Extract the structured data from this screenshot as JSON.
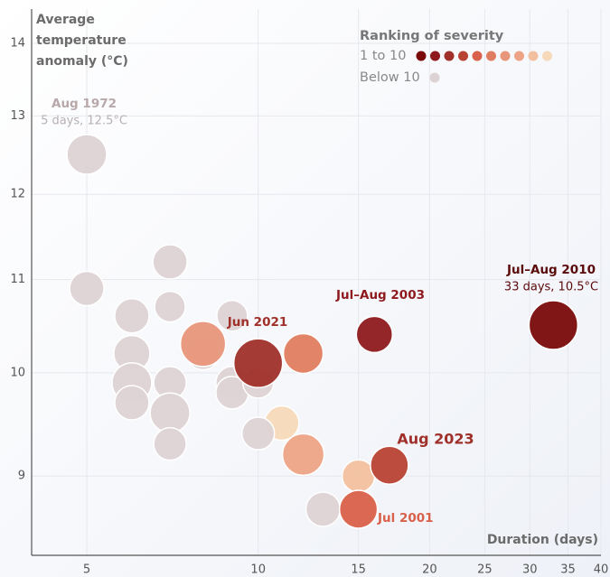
{
  "chart_data": {
    "type": "scatter",
    "y_label": [
      "Average",
      "temperature",
      "anomaly (°C)"
    ],
    "x_label": "Duration (days)",
    "x_scale": "log",
    "y_scale": "log",
    "grid": true,
    "xlim": [
      4,
      40
    ],
    "ylim": [
      8.3,
      14.5
    ],
    "xticks": [
      5,
      10,
      15,
      20,
      25,
      30,
      35,
      40
    ],
    "yticks": [
      9,
      10,
      11,
      12,
      13,
      14
    ],
    "series": [
      {
        "x": [
          5,
          5,
          7,
          7,
          6,
          6,
          6,
          6,
          7,
          7,
          7,
          9,
          8,
          9,
          9,
          10,
          8,
          10,
          12,
          11,
          10,
          12,
          13,
          15,
          15,
          17,
          16,
          33
        ],
        "values": [
          12.5,
          10.9,
          11.2,
          10.7,
          10.6,
          10.2,
          9.9,
          9.7,
          9.9,
          9.6,
          9.3,
          10.6,
          10.2,
          9.9,
          9.8,
          9.9,
          10.3,
          10.1,
          10.2,
          9.5,
          9.4,
          9.2,
          8.7,
          9.0,
          8.7,
          9.1,
          10.4,
          10.5
        ],
        "sizes": [
          22,
          19,
          19,
          17,
          19,
          20,
          22,
          19,
          18,
          22,
          18,
          17,
          18,
          18,
          18,
          17,
          25,
          27,
          22,
          19,
          18,
          23,
          19,
          18,
          21,
          21,
          20,
          27
        ],
        "colors": [
          "#ddd3d5",
          "#ddd3d5",
          "#ddd3d5",
          "#ddd3d5",
          "#ddd3d5",
          "#ddd3d5",
          "#ddd3d5",
          "#ddd3d5",
          "#ddd3d5",
          "#ddd3d5",
          "#ddd3d5",
          "#ddd3d5",
          "#ddd3d5",
          "#ddd3d5",
          "#ddd3d5",
          "#ddd3d5",
          "#e8967a",
          "#a0302a",
          "#e07d60",
          "#f6d9b8",
          "#ddd3d5",
          "#eda385",
          "#ddd3d5",
          "#f2c09f",
          "#d9604a",
          "#b84233",
          "#8e1a1e",
          "#7a0a0a"
        ]
      }
    ],
    "legend": {
      "title": "Ranking of severity",
      "top_label": "1 to 10",
      "top_colors": [
        "#7a0a0a",
        "#8e1a1e",
        "#a0302a",
        "#b84233",
        "#d9604a",
        "#e07d60",
        "#e8967a",
        "#eda385",
        "#f2c09f",
        "#f6d9b8"
      ],
      "bottom_label": "Below 10",
      "bottom_color": "#ddd3d5"
    },
    "annotations": [
      {
        "title": "Aug 1972",
        "subtitle": "5 days, 12.5°C"
      },
      {
        "title": "Jul–Aug 2010",
        "subtitle": "33 days, 10.5°C"
      },
      {
        "title": "Jul–Aug 2003"
      },
      {
        "title": "Jun 2021"
      },
      {
        "title": "Aug 2023"
      },
      {
        "title": "Jul 2001"
      }
    ]
  }
}
